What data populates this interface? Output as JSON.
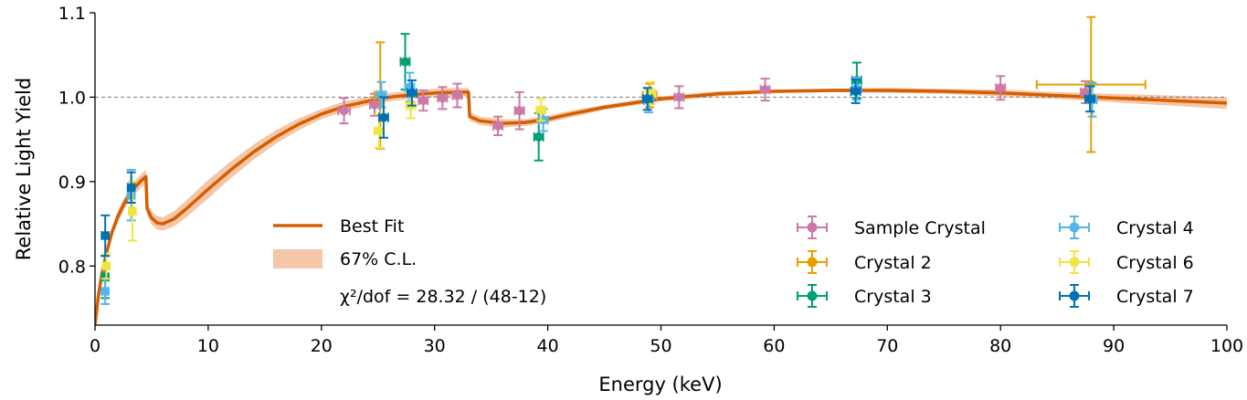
{
  "chart_data": {
    "type": "scatter",
    "xlabel": "Energy (keV)",
    "ylabel": "Relative Light Yield",
    "xlim": [
      0,
      100
    ],
    "ylim": [
      0.73,
      1.1
    ],
    "xticks": [
      0,
      10,
      20,
      30,
      40,
      50,
      60,
      70,
      80,
      90,
      100
    ],
    "yticks": [
      0.8,
      0.9,
      1.0,
      1.1
    ],
    "reference_line": 1.0,
    "legend_left": {
      "fit_label": "Best Fit",
      "band_label": "67% C.L.",
      "chi2_label": "χ²/dof = 28.32 / (48-12)"
    },
    "fit": {
      "color": "#d55e00",
      "band_color": "#f3c7a8",
      "x": [
        0.0,
        0.3,
        0.6,
        1.0,
        1.5,
        2.0,
        2.5,
        3.0,
        3.5,
        4.0,
        4.5,
        4.6,
        5.0,
        5.5,
        6.0,
        7.0,
        8.0,
        10.0,
        12.0,
        14.0,
        16.0,
        18.0,
        20.0,
        22.0,
        24.0,
        26.0,
        28.0,
        30.0,
        32.0,
        33.0,
        33.1,
        34.0,
        36.0,
        38.0,
        40.0,
        42.0,
        45.0,
        50.0,
        55.0,
        60.0,
        65.0,
        70.0,
        75.0,
        80.0,
        85.0,
        90.0,
        95.0,
        100.0
      ],
      "y": [
        0.73,
        0.765,
        0.79,
        0.815,
        0.84,
        0.858,
        0.872,
        0.884,
        0.893,
        0.9,
        0.906,
        0.868,
        0.857,
        0.851,
        0.85,
        0.856,
        0.867,
        0.891,
        0.914,
        0.935,
        0.953,
        0.968,
        0.98,
        0.989,
        0.995,
        1.0,
        1.003,
        1.005,
        1.006,
        1.006,
        0.977,
        0.972,
        0.969,
        0.97,
        0.974,
        0.98,
        0.988,
        0.998,
        1.004,
        1.007,
        1.008,
        1.008,
        1.007,
        1.005,
        1.002,
        0.999,
        0.996,
        0.993
      ],
      "band_halfwidth": [
        0.004,
        0.005,
        0.005,
        0.006,
        0.006,
        0.007,
        0.007,
        0.007,
        0.008,
        0.008,
        0.008,
        0.008,
        0.008,
        0.008,
        0.008,
        0.009,
        0.01,
        0.011,
        0.01,
        0.009,
        0.008,
        0.007,
        0.006,
        0.006,
        0.005,
        0.005,
        0.005,
        0.005,
        0.005,
        0.005,
        0.005,
        0.005,
        0.005,
        0.004,
        0.004,
        0.004,
        0.003,
        0.003,
        0.003,
        0.002,
        0.002,
        0.003,
        0.003,
        0.004,
        0.004,
        0.005,
        0.006,
        0.007
      ]
    },
    "series": [
      {
        "name": "Sample Crystal",
        "color": "#cc79a7",
        "marker": "circle",
        "points": [
          {
            "x": 22.0,
            "y": 0.984,
            "xerr": 0.5,
            "yerr": 0.015
          },
          {
            "x": 24.7,
            "y": 0.991,
            "xerr": 0.4,
            "yerr": 0.013
          },
          {
            "x": 29.0,
            "y": 0.996,
            "xerr": 0.4,
            "yerr": 0.012
          },
          {
            "x": 30.7,
            "y": 0.999,
            "xerr": 0.4,
            "yerr": 0.013
          },
          {
            "x": 32.0,
            "y": 1.002,
            "xerr": 0.4,
            "yerr": 0.014
          },
          {
            "x": 35.6,
            "y": 0.966,
            "xerr": 0.4,
            "yerr": 0.011
          },
          {
            "x": 37.5,
            "y": 0.984,
            "xerr": 0.4,
            "yerr": 0.022
          },
          {
            "x": 51.6,
            "y": 1.0,
            "xerr": 0.4,
            "yerr": 0.013
          },
          {
            "x": 59.2,
            "y": 1.009,
            "xerr": 0.4,
            "yerr": 0.013
          },
          {
            "x": 80.0,
            "y": 1.011,
            "xerr": 0.4,
            "yerr": 0.014
          },
          {
            "x": 87.5,
            "y": 1.006,
            "xerr": 0.4,
            "yerr": 0.013
          }
        ]
      },
      {
        "name": "Crystal 2",
        "color": "#e69f00",
        "marker": "circle",
        "points": [
          {
            "x": 25.2,
            "y": 1.002,
            "xerr": 0.5,
            "yerr": 0.063
          },
          {
            "x": 49.0,
            "y": 1.002,
            "xerr": 0.6,
            "yerr": 0.014
          },
          {
            "x": 88.0,
            "y": 1.015,
            "xerr": 4.8,
            "yerr": 0.08
          }
        ]
      },
      {
        "name": "Crystal 3",
        "color": "#009e73",
        "marker": "circle",
        "points": [
          {
            "x": 0.9,
            "y": 0.787,
            "xerr": 0.3,
            "yerr": 0.025
          },
          {
            "x": 27.4,
            "y": 1.042,
            "xerr": 0.4,
            "yerr": 0.033
          },
          {
            "x": 39.2,
            "y": 0.953,
            "xerr": 0.4,
            "yerr": 0.028
          },
          {
            "x": 67.3,
            "y": 1.02,
            "xerr": 0.4,
            "yerr": 0.021
          }
        ]
      },
      {
        "name": "Crystal 4",
        "color": "#56b4e9",
        "marker": "circle",
        "points": [
          {
            "x": 0.9,
            "y": 0.77,
            "xerr": 0.3,
            "yerr": 0.015
          },
          {
            "x": 3.2,
            "y": 0.884,
            "xerr": 0.3,
            "yerr": 0.03
          },
          {
            "x": 25.3,
            "y": 1.003,
            "xerr": 0.4,
            "yerr": 0.015
          },
          {
            "x": 27.8,
            "y": 1.012,
            "xerr": 0.4,
            "yerr": 0.017
          },
          {
            "x": 39.6,
            "y": 0.973,
            "xerr": 0.4,
            "yerr": 0.013
          },
          {
            "x": 48.9,
            "y": 0.996,
            "xerr": 0.4,
            "yerr": 0.014
          },
          {
            "x": 67.3,
            "y": 1.01,
            "xerr": 0.4,
            "yerr": 0.013
          },
          {
            "x": 88.1,
            "y": 0.997,
            "xerr": 0.4,
            "yerr": 0.02
          }
        ]
      },
      {
        "name": "Crystal 6",
        "color": "#f0e442",
        "marker": "circle",
        "points": [
          {
            "x": 1.0,
            "y": 0.8,
            "xerr": 0.3,
            "yerr": 0.015
          },
          {
            "x": 3.3,
            "y": 0.865,
            "xerr": 0.3,
            "yerr": 0.035
          },
          {
            "x": 25.1,
            "y": 0.96,
            "xerr": 0.4,
            "yerr": 0.02
          },
          {
            "x": 27.9,
            "y": 0.99,
            "xerr": 0.4,
            "yerr": 0.015
          },
          {
            "x": 49.1,
            "y": 1.005,
            "xerr": 0.4,
            "yerr": 0.013
          },
          {
            "x": 39.4,
            "y": 0.985,
            "xerr": 0.4,
            "yerr": 0.013
          }
        ]
      },
      {
        "name": "Crystal 7",
        "color": "#0072b2",
        "marker": "circle",
        "points": [
          {
            "x": 0.9,
            "y": 0.836,
            "xerr": 0.3,
            "yerr": 0.024
          },
          {
            "x": 3.2,
            "y": 0.893,
            "xerr": 0.3,
            "yerr": 0.018
          },
          {
            "x": 25.5,
            "y": 0.976,
            "xerr": 0.4,
            "yerr": 0.024
          },
          {
            "x": 28.0,
            "y": 1.005,
            "xerr": 0.4,
            "yerr": 0.015
          },
          {
            "x": 48.8,
            "y": 0.998,
            "xerr": 0.4,
            "yerr": 0.013
          },
          {
            "x": 67.2,
            "y": 1.007,
            "xerr": 0.4,
            "yerr": 0.014
          },
          {
            "x": 87.9,
            "y": 0.998,
            "xerr": 0.4,
            "yerr": 0.015
          }
        ]
      }
    ]
  }
}
